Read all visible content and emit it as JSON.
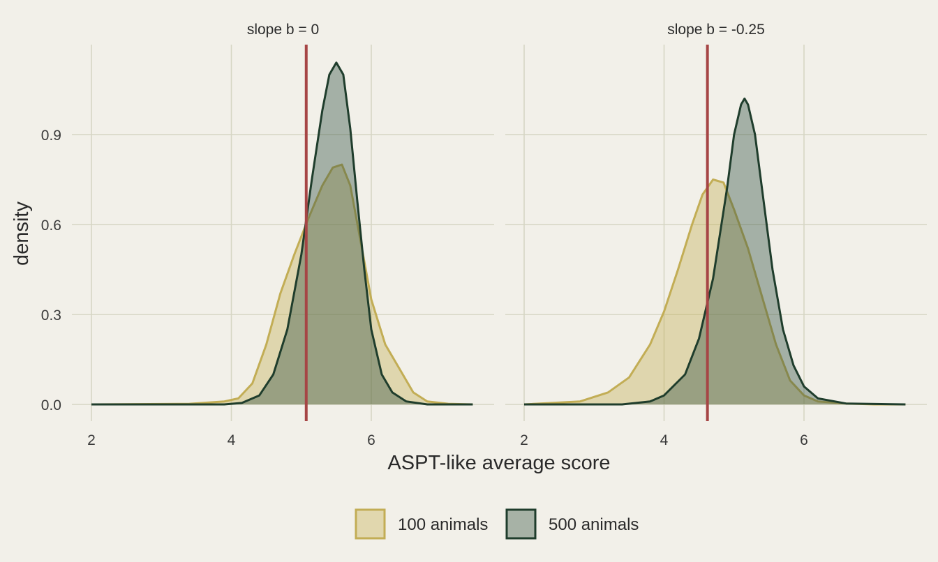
{
  "chart_data": {
    "type": "area",
    "xlabel": "ASPT-like average score",
    "ylabel": "density",
    "xlim": [
      1.97,
      7.5
    ],
    "ylim": [
      -0.06,
      1.2
    ],
    "x_ticks": [
      "2",
      "4",
      "6"
    ],
    "y_ticks": [
      "0.0",
      "0.3",
      "0.6",
      "0.9"
    ],
    "grid": true,
    "legend_position": "bottom",
    "legend": [
      {
        "name": "100 animals",
        "fill": "#e1d7ae",
        "stroke": "#c2ad55"
      },
      {
        "name": "500 animals",
        "fill": "#a7b2a6",
        "stroke": "#1f3d2c"
      }
    ],
    "colors": {
      "background": "#f2f0e9",
      "grid": "#d6d6c4",
      "reference_line": "#a64545",
      "fill_100": "#c4ae55",
      "stroke_100": "#c2ad55",
      "fill_500": "#2f5040",
      "stroke_500": "#1f3d2c"
    },
    "panels": [
      {
        "strip": "slope b = 0",
        "reference_x": 5.07,
        "series": [
          {
            "name": "100 animals",
            "x": [
              2.0,
              3.4,
              3.9,
              4.1,
              4.3,
              4.5,
              4.7,
              4.9,
              5.1,
              5.3,
              5.45,
              5.58,
              5.7,
              5.85,
              6.0,
              6.2,
              6.4,
              6.6,
              6.8,
              7.1,
              7.45
            ],
            "y": [
              0.0,
              0.002,
              0.01,
              0.02,
              0.07,
              0.2,
              0.37,
              0.5,
              0.62,
              0.73,
              0.79,
              0.8,
              0.73,
              0.54,
              0.35,
              0.2,
              0.12,
              0.04,
              0.01,
              0.002,
              0.0
            ]
          },
          {
            "name": "500 animals",
            "x": [
              2.0,
              3.9,
              4.15,
              4.4,
              4.6,
              4.8,
              5.0,
              5.15,
              5.3,
              5.4,
              5.5,
              5.6,
              5.7,
              5.8,
              5.9,
              6.0,
              6.15,
              6.3,
              6.5,
              6.8,
              7.45
            ],
            "y": [
              0.0,
              0.0,
              0.005,
              0.03,
              0.1,
              0.25,
              0.5,
              0.75,
              0.98,
              1.1,
              1.14,
              1.1,
              0.92,
              0.68,
              0.45,
              0.25,
              0.1,
              0.04,
              0.01,
              0.0,
              0.0
            ]
          }
        ]
      },
      {
        "strip": "slope b = -0.25",
        "reference_x": 4.62,
        "series": [
          {
            "name": "100 animals",
            "x": [
              2.0,
              2.8,
              3.2,
              3.5,
              3.8,
              4.0,
              4.2,
              4.4,
              4.55,
              4.7,
              4.85,
              5.0,
              5.2,
              5.4,
              5.6,
              5.8,
              6.0,
              6.2,
              6.6,
              7.0,
              7.45
            ],
            "y": [
              0.0,
              0.01,
              0.04,
              0.09,
              0.2,
              0.31,
              0.45,
              0.6,
              0.7,
              0.75,
              0.74,
              0.65,
              0.52,
              0.36,
              0.2,
              0.08,
              0.03,
              0.01,
              0.003,
              0.0,
              0.0
            ]
          },
          {
            "name": "500 animals",
            "x": [
              2.0,
              3.4,
              3.8,
              4.0,
              4.3,
              4.5,
              4.7,
              4.9,
              5.0,
              5.1,
              5.15,
              5.2,
              5.3,
              5.4,
              5.55,
              5.7,
              5.85,
              6.0,
              6.2,
              6.6,
              7.45
            ],
            "y": [
              0.0,
              0.0,
              0.01,
              0.03,
              0.1,
              0.22,
              0.42,
              0.72,
              0.9,
              1.0,
              1.02,
              1.0,
              0.9,
              0.72,
              0.45,
              0.25,
              0.13,
              0.06,
              0.02,
              0.003,
              0.0
            ]
          }
        ]
      }
    ]
  }
}
